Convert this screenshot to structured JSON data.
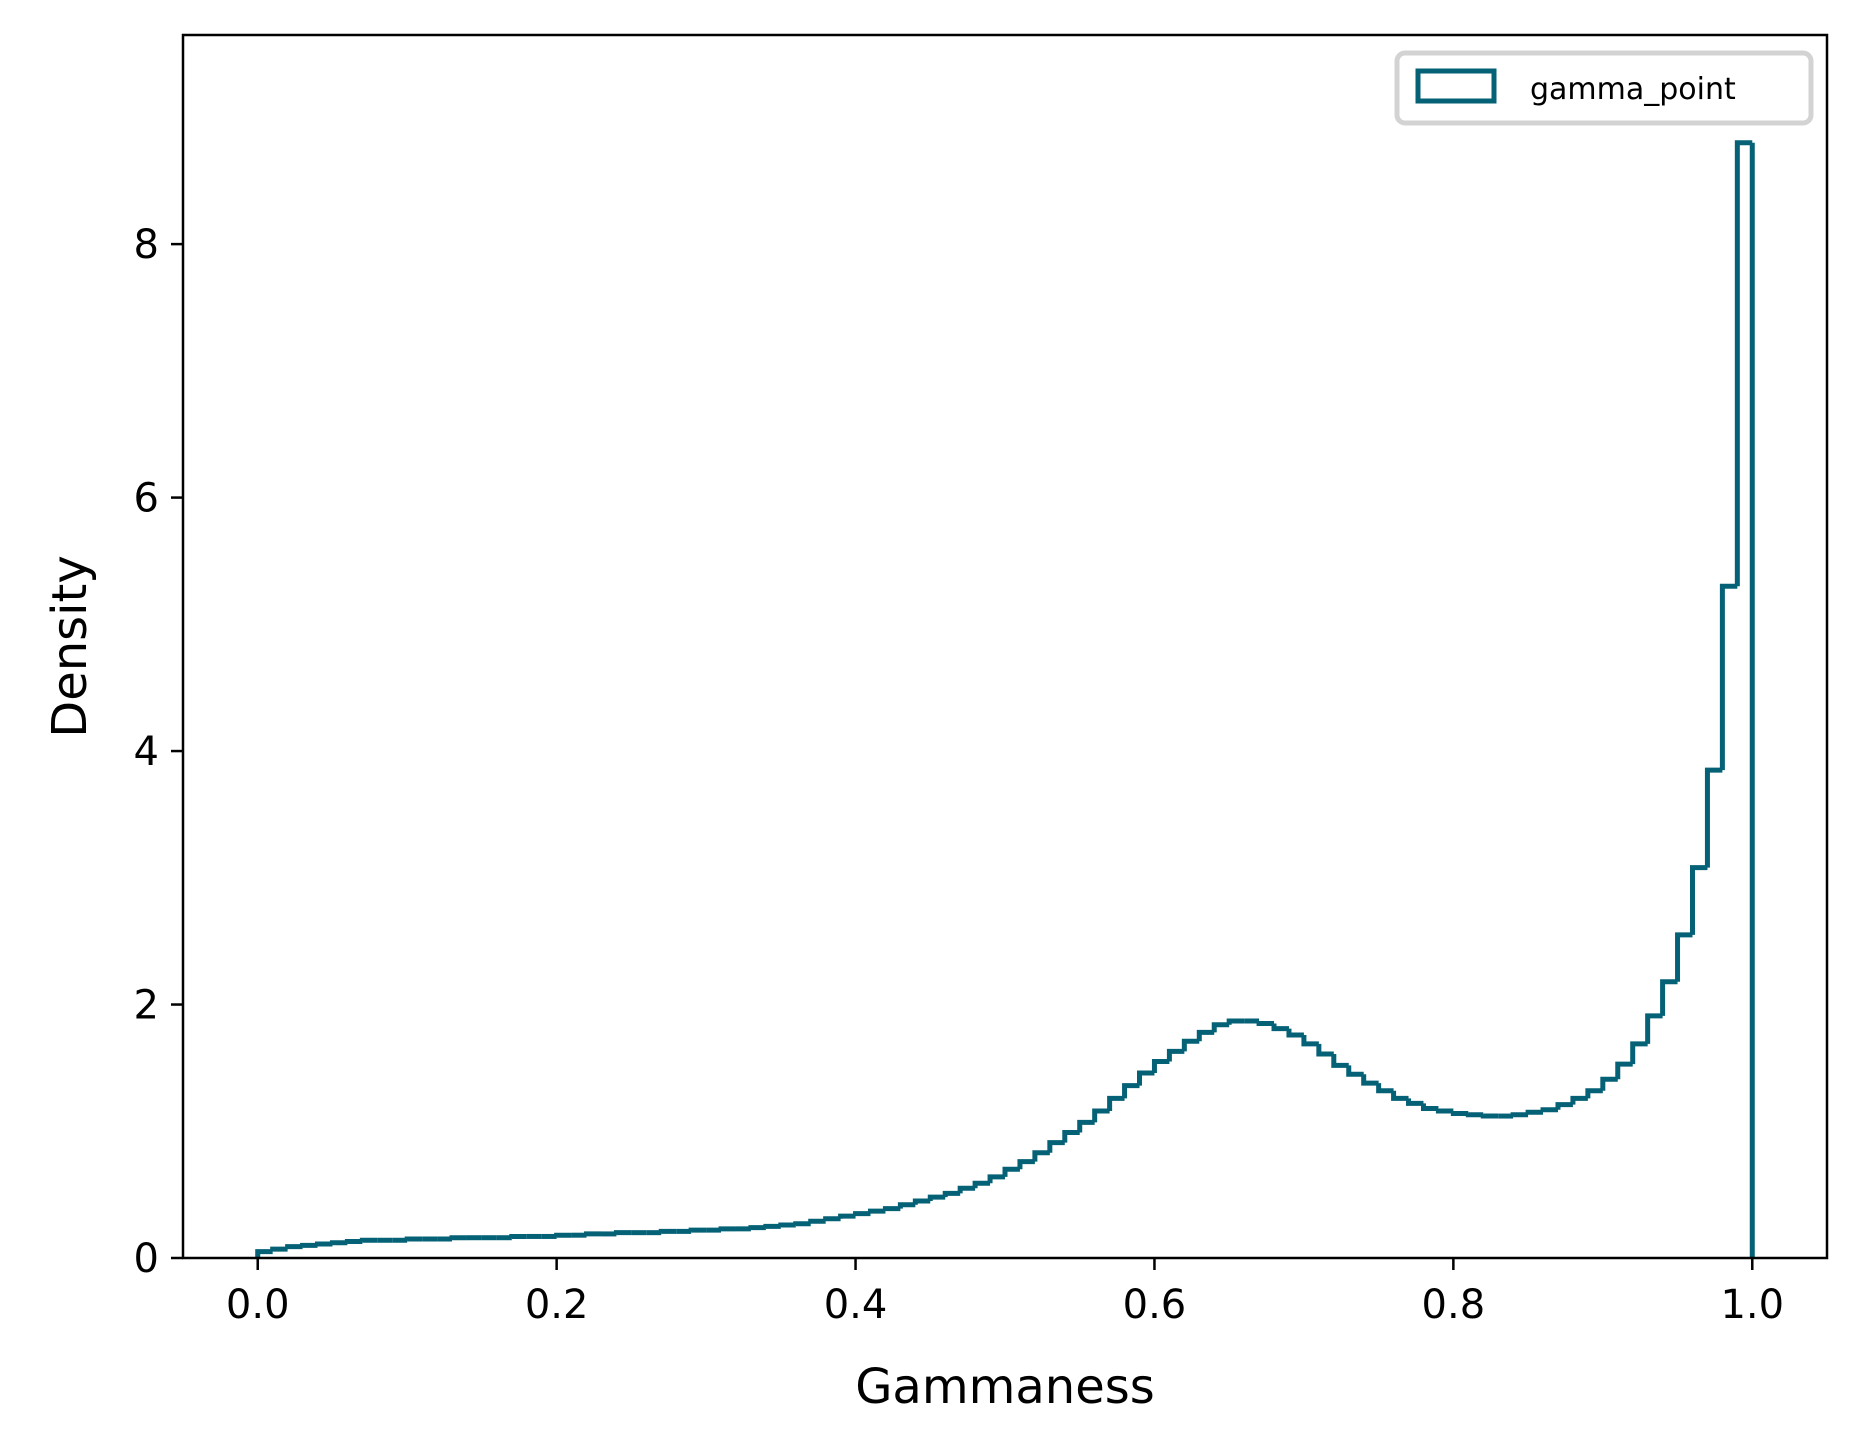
{
  "chart_data": {
    "type": "histogram-step",
    "xlabel": "Gammaness",
    "ylabel": "Density",
    "xlim": [
      -0.05,
      1.05
    ],
    "ylim": [
      0,
      9.65
    ],
    "xticks": [
      0.0,
      0.2,
      0.4,
      0.6,
      0.8,
      1.0
    ],
    "xtick_labels": [
      "0.0",
      "0.2",
      "0.4",
      "0.6",
      "0.8",
      "1.0"
    ],
    "yticks": [
      0,
      2,
      4,
      6,
      8
    ],
    "ytick_labels": [
      "0",
      "2",
      "4",
      "6",
      "8"
    ],
    "legend": {
      "position": "top-right",
      "entries": [
        "gamma_point"
      ]
    },
    "series": [
      {
        "name": "gamma_point",
        "color": "#046176",
        "bin_edges_start": 0.0,
        "bin_width": 0.01,
        "values": [
          0.05,
          0.07,
          0.09,
          0.1,
          0.11,
          0.12,
          0.13,
          0.14,
          0.14,
          0.14,
          0.15,
          0.15,
          0.15,
          0.16,
          0.16,
          0.16,
          0.16,
          0.17,
          0.17,
          0.17,
          0.18,
          0.18,
          0.19,
          0.19,
          0.2,
          0.2,
          0.2,
          0.21,
          0.21,
          0.22,
          0.22,
          0.23,
          0.23,
          0.24,
          0.25,
          0.26,
          0.27,
          0.29,
          0.31,
          0.33,
          0.35,
          0.37,
          0.39,
          0.42,
          0.45,
          0.48,
          0.51,
          0.55,
          0.59,
          0.64,
          0.7,
          0.76,
          0.83,
          0.91,
          0.99,
          1.07,
          1.16,
          1.26,
          1.36,
          1.46,
          1.55,
          1.63,
          1.71,
          1.78,
          1.84,
          1.87,
          1.87,
          1.85,
          1.81,
          1.76,
          1.69,
          1.61,
          1.52,
          1.45,
          1.38,
          1.32,
          1.26,
          1.22,
          1.18,
          1.16,
          1.14,
          1.13,
          1.12,
          1.12,
          1.13,
          1.15,
          1.17,
          1.21,
          1.26,
          1.32,
          1.41,
          1.53,
          1.69,
          1.91,
          2.18,
          2.55,
          3.08,
          3.85,
          5.3,
          8.8
        ]
      }
    ]
  }
}
